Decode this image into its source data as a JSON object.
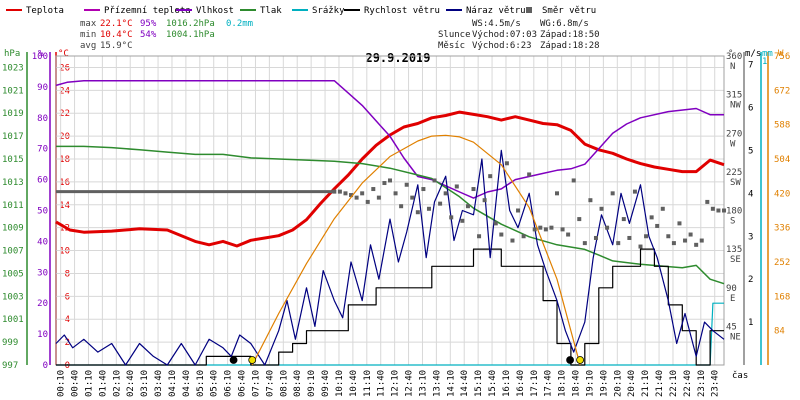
{
  "colors": {
    "teplota": "#e00000",
    "prizemni": "#b000b0",
    "vlhkost": "#8000c0",
    "tlak": "#2e8b2e",
    "srazky": "#00b0c0",
    "rychlost": "#000000",
    "naraz": "#000080",
    "smer": "#606060",
    "slunce": "#e08000",
    "grid": "#d8d8d8"
  },
  "legend": [
    {
      "label": "Teplota",
      "color": "#e00000",
      "mark": "line"
    },
    {
      "label": "Přízemní teplota",
      "color": "#b000b0",
      "mark": "line"
    },
    {
      "label": "Vlhkost",
      "color": "#8000c0",
      "mark": "line"
    },
    {
      "label": "Tlak",
      "color": "#2e8b2e",
      "mark": "line"
    },
    {
      "label": "Srážky",
      "color": "#00b0c0",
      "mark": "line"
    },
    {
      "label": "Rychlost větru",
      "color": "#000000",
      "mark": "line"
    },
    {
      "label": "Náraz větru",
      "color": "#000080",
      "mark": "line"
    },
    {
      "label": "Směr větru",
      "color": "#606060",
      "mark": "square"
    }
  ],
  "stats": {
    "max_label": "max",
    "max_temp": "22.1°C",
    "max_hum": "95%",
    "max_press": "1016.2hPa",
    "max_rain": "0.2mm",
    "min_label": "min",
    "min_temp": "10.4°C",
    "min_hum": "54%",
    "min_press": "1004.1hPa",
    "avg_label": "avg",
    "avg_temp": "15.9°C"
  },
  "info": {
    "ws": "WS:4.5m/s",
    "wg": "WG:6.8m/s",
    "slunce": "Slunce",
    "slunce_vychod": "Východ:07:03",
    "slunce_zapad": "Západ:18:50",
    "mesic": "Měsíc",
    "mesic_vychod": "Východ:6:23",
    "mesic_zapad": "Západ:18:28"
  },
  "chart_data": {
    "type": "line",
    "title": "29.9.2019",
    "xlabel": "čas",
    "x_ticks": [
      "00:10",
      "00:40",
      "01:10",
      "01:40",
      "02:10",
      "02:40",
      "03:10",
      "03:40",
      "04:10",
      "04:40",
      "05:10",
      "05:40",
      "06:10",
      "06:40",
      "07:10",
      "07:40",
      "08:10",
      "08:40",
      "09:10",
      "09:40",
      "10:10",
      "10:40",
      "11:10",
      "11:40",
      "12:10",
      "12:40",
      "13:10",
      "13:40",
      "14:10",
      "14:40",
      "15:10",
      "15:40",
      "16:10",
      "16:40",
      "17:10",
      "17:40",
      "18:10",
      "18:40",
      "19:10",
      "19:40",
      "20:10",
      "20:40",
      "21:10",
      "21:40",
      "22:10",
      "22:40",
      "23:10",
      "23:40"
    ],
    "axes": {
      "pressure": {
        "unit": "hPa",
        "ticks": [
          "1023",
          "1021",
          "1019",
          "1017",
          "1015",
          "1013",
          "1011",
          "1009",
          "1007",
          "1005",
          "1003",
          "1001",
          "999",
          "997"
        ],
        "range": [
          997,
          1024
        ]
      },
      "humidity": {
        "unit": "%",
        "ticks": [
          "100",
          "90",
          "80",
          "70",
          "60",
          "50",
          "40",
          "30",
          "20",
          "10",
          "0"
        ],
        "range": [
          0,
          100
        ]
      },
      "temperature": {
        "unit": "°C",
        "ticks": [
          "26",
          "24",
          "22",
          "20",
          "18",
          "16",
          "14",
          "12",
          "10",
          "8",
          "6",
          "4",
          "2",
          "0"
        ],
        "range": [
          0,
          27
        ]
      },
      "direction": {
        "unit": "°",
        "ticks": [
          {
            "v": "360",
            "d": "N"
          },
          {
            "v": "315",
            "d": "NW"
          },
          {
            "v": "270",
            "d": "W"
          },
          {
            "v": "225",
            "d": "SW"
          },
          {
            "v": "180",
            "d": "S"
          },
          {
            "v": "135",
            "d": "SE"
          },
          {
            "v": "90",
            "d": "E"
          },
          {
            "v": "45",
            "d": "NE"
          },
          {
            "v": "0",
            "d": "N"
          }
        ],
        "range": [
          0,
          360
        ]
      },
      "wind": {
        "unit": "m/s",
        "ticks": [
          "7",
          "6",
          "5",
          "4",
          "3",
          "2",
          "1",
          "0"
        ],
        "range": [
          0,
          7.2
        ]
      },
      "rain": {
        "unit": "mm",
        "ticks": [
          "1"
        ],
        "range": [
          0,
          1
        ]
      },
      "radiation": {
        "unit": "W",
        "ticks": [
          "756",
          "672",
          "588",
          "504",
          "420",
          "336",
          "252",
          "168",
          "84",
          "0"
        ],
        "range": [
          0,
          756
        ]
      }
    },
    "series": [
      {
        "name": "Teplota",
        "axis": "temperature",
        "color": "#e00000",
        "x": [
          0,
          0.5,
          1,
          2,
          3,
          4,
          5,
          5.5,
          6,
          6.5,
          7,
          7.5,
          8,
          8.5,
          9,
          9.5,
          10,
          10.5,
          11,
          11.5,
          12,
          12.5,
          13,
          13.5,
          14,
          14.5,
          15,
          15.5,
          16,
          16.5,
          17,
          17.5,
          18,
          18.5,
          19,
          19.5,
          20,
          20.5,
          21,
          21.5,
          22,
          22.5,
          23,
          23.5,
          24
        ],
        "y": [
          12.5,
          11.8,
          11.6,
          11.7,
          11.9,
          11.8,
          10.8,
          10.5,
          10.8,
          10.4,
          10.9,
          11.1,
          11.3,
          11.8,
          12.7,
          14.1,
          15.4,
          16.6,
          18.0,
          19.2,
          20.1,
          20.8,
          21.1,
          21.6,
          21.8,
          22.1,
          21.9,
          21.7,
          21.4,
          21.7,
          21.4,
          21.1,
          21.0,
          20.5,
          19.3,
          18.8,
          18.5,
          18.0,
          17.6,
          17.3,
          17.1,
          16.9,
          16.9,
          17.9,
          17.5
        ]
      },
      {
        "name": "Vlhkost",
        "axis": "humidity",
        "color": "#8000c0",
        "x": [
          0,
          0.4,
          1,
          2,
          4,
          6,
          8,
          9,
          10,
          10.5,
          11,
          11.5,
          12,
          12.5,
          13,
          13.5,
          14,
          14.5,
          15,
          15.5,
          16,
          16.5,
          17,
          17.5,
          18,
          18.5,
          19,
          19.5,
          20,
          20.5,
          21,
          22,
          23,
          23.5,
          24
        ],
        "y": [
          90.5,
          91.5,
          92,
          92,
          92,
          92,
          92,
          92,
          92,
          88,
          84,
          79,
          74,
          67,
          61,
          60,
          58,
          56,
          54,
          56,
          57,
          60,
          61,
          62,
          63,
          63.5,
          65,
          70,
          75,
          78,
          80,
          82,
          83,
          81,
          81
        ]
      },
      {
        "name": "Tlak",
        "axis": "pressure",
        "color": "#2e8b2e",
        "x": [
          0,
          1,
          2,
          3,
          4,
          5,
          6,
          7,
          8,
          9,
          10,
          11,
          12,
          13,
          13.5,
          14,
          14.5,
          15,
          15.5,
          16,
          17,
          18,
          19,
          19.5,
          20,
          21,
          22,
          22.5,
          23,
          23.5,
          24
        ],
        "y": [
          1016.1,
          1016.1,
          1016.0,
          1015.8,
          1015.6,
          1015.4,
          1015.4,
          1015.1,
          1015.0,
          1014.9,
          1014.8,
          1014.6,
          1014.2,
          1013.6,
          1013.3,
          1012.5,
          1011.7,
          1010.7,
          1010.0,
          1009.3,
          1008.2,
          1007.5,
          1007.1,
          1006.6,
          1006.1,
          1005.8,
          1005.6,
          1005.5,
          1005.7,
          1004.5,
          1004.1
        ]
      },
      {
        "name": "Srážky",
        "axis": "rain",
        "color": "#00b0c0",
        "x": [
          0,
          23.5,
          23.6,
          24
        ],
        "y": [
          0,
          0,
          0.2,
          0.2
        ]
      },
      {
        "name": "Rychlost větru",
        "axis": "wind",
        "color": "#000000",
        "style": "step",
        "x": [
          0,
          1,
          2,
          3,
          4,
          5,
          5.4,
          6,
          6.5,
          7,
          7.5,
          8,
          8.5,
          9,
          9.5,
          10,
          10.5,
          11,
          11.5,
          12,
          12.5,
          13,
          13.5,
          14,
          14.5,
          15,
          15.5,
          16,
          16.5,
          17,
          17.5,
          18,
          18.5,
          19,
          19.5,
          20,
          20.5,
          21,
          21.5,
          22,
          22.5,
          23,
          23.5,
          24
        ],
        "y": [
          0,
          0,
          0,
          0,
          0,
          0,
          0.2,
          0.2,
          0.2,
          0,
          0,
          0.3,
          0.5,
          0.8,
          0.8,
          0.8,
          1.4,
          1.4,
          1.8,
          1.8,
          1.8,
          1.8,
          2.3,
          2.3,
          2.3,
          2.7,
          2.7,
          2.3,
          2.3,
          2.3,
          1.5,
          0.5,
          0,
          0.5,
          1.8,
          2.3,
          2.3,
          2.7,
          2.3,
          1.4,
          0.8,
          0,
          0.8,
          0.8
        ]
      },
      {
        "name": "Náraz větru",
        "axis": "wind",
        "color": "#000080",
        "x": [
          0,
          0.3,
          0.6,
          1,
          1.5,
          2,
          2.5,
          3,
          3.5,
          4,
          4.5,
          5,
          5.5,
          6,
          6.3,
          6.6,
          7,
          7.5,
          8,
          8.3,
          8.6,
          9,
          9.3,
          9.6,
          10,
          10.3,
          10.6,
          11,
          11.3,
          11.6,
          12,
          12.3,
          12.6,
          13,
          13.3,
          13.6,
          14,
          14.3,
          14.6,
          15,
          15.3,
          15.6,
          16,
          16.3,
          16.6,
          17,
          17.3,
          17.6,
          18,
          18.3,
          18.6,
          19,
          19.3,
          19.6,
          20,
          20.3,
          20.6,
          21,
          21.3,
          21.6,
          22,
          22.3,
          22.6,
          23,
          23.3,
          23.6,
          24
        ],
        "y": [
          0.5,
          0.7,
          0.4,
          0.6,
          0.3,
          0.5,
          0,
          0.5,
          0.2,
          0,
          0.5,
          0,
          0.6,
          0.4,
          0.2,
          0.7,
          0.5,
          0,
          0.8,
          1.5,
          0.6,
          1.8,
          0.9,
          2.2,
          1.5,
          1.1,
          2.4,
          1.5,
          2.8,
          2.0,
          3.4,
          2.4,
          3.1,
          4.2,
          2.5,
          3.8,
          4.4,
          2.9,
          3.6,
          3.5,
          4.8,
          2.5,
          5.0,
          3.6,
          3.2,
          4.0,
          2.8,
          2.2,
          1.5,
          0.8,
          0.3,
          1.0,
          2.5,
          3.5,
          2.8,
          4.0,
          3.3,
          4.2,
          3.0,
          2.5,
          1.5,
          0.5,
          1.2,
          0.2,
          1.0,
          0.8,
          0.6
        ]
      },
      {
        "name": "Směr větru",
        "axis": "direction",
        "color": "#606060",
        "style": "points",
        "x": [
          0,
          10,
          10.2,
          10.4,
          10.6,
          10.8,
          11.0,
          11.2,
          11.4,
          11.6,
          11.8,
          12.0,
          12.2,
          12.4,
          12.6,
          12.8,
          13.0,
          13.2,
          13.4,
          13.6,
          13.8,
          14.0,
          14.2,
          14.4,
          14.6,
          14.8,
          15.0,
          15.2,
          15.4,
          15.6,
          15.8,
          16.0,
          16.2,
          16.4,
          16.6,
          16.8,
          17.0,
          17.2,
          17.4,
          17.6,
          17.8,
          18.0,
          18.2,
          18.4,
          18.6,
          18.8,
          19.0,
          19.2,
          19.4,
          19.6,
          19.8,
          20.0,
          20.2,
          20.4,
          20.6,
          20.8,
          21.0,
          21.2,
          21.4,
          21.6,
          21.8,
          22.0,
          22.2,
          22.4,
          22.6,
          22.8,
          23.0,
          23.2,
          23.4,
          23.6,
          23.8,
          24
        ],
        "y": [
          202,
          202,
          202,
          200,
          198,
          195,
          200,
          190,
          205,
          195,
          212,
          215,
          200,
          185,
          210,
          195,
          178,
          205,
          182,
          215,
          188,
          200,
          172,
          208,
          168,
          185,
          205,
          150,
          192,
          220,
          165,
          152,
          235,
          145,
          180,
          150,
          222,
          158,
          160,
          158,
          160,
          200,
          158,
          152,
          215,
          170,
          142,
          192,
          148,
          182,
          160,
          200,
          142,
          170,
          148,
          202,
          138,
          150,
          172,
          162,
          182,
          150,
          142,
          165,
          145,
          152,
          140,
          145,
          190,
          182,
          180,
          180
        ]
      },
      {
        "name": "Slunce",
        "axis": "radiation",
        "color": "#e08000",
        "x": [
          7.05,
          8,
          9,
          10,
          11,
          12,
          13,
          13.5,
          14,
          14.5,
          15,
          16,
          17,
          18,
          18.83
        ],
        "y": [
          0,
          126,
          248,
          358,
          445,
          510,
          548,
          560,
          562,
          558,
          545,
          490,
          385,
          210,
          0
        ]
      }
    ],
    "markers": [
      {
        "label": "Měsíc východ",
        "x": 6.38,
        "shape": "moon"
      },
      {
        "label": "Slunce východ",
        "x": 7.05,
        "shape": "sun"
      },
      {
        "label": "Měsíc západ",
        "x": 18.47,
        "shape": "moon"
      },
      {
        "label": "Slunce západ",
        "x": 18.83,
        "shape": "sun"
      }
    ]
  }
}
